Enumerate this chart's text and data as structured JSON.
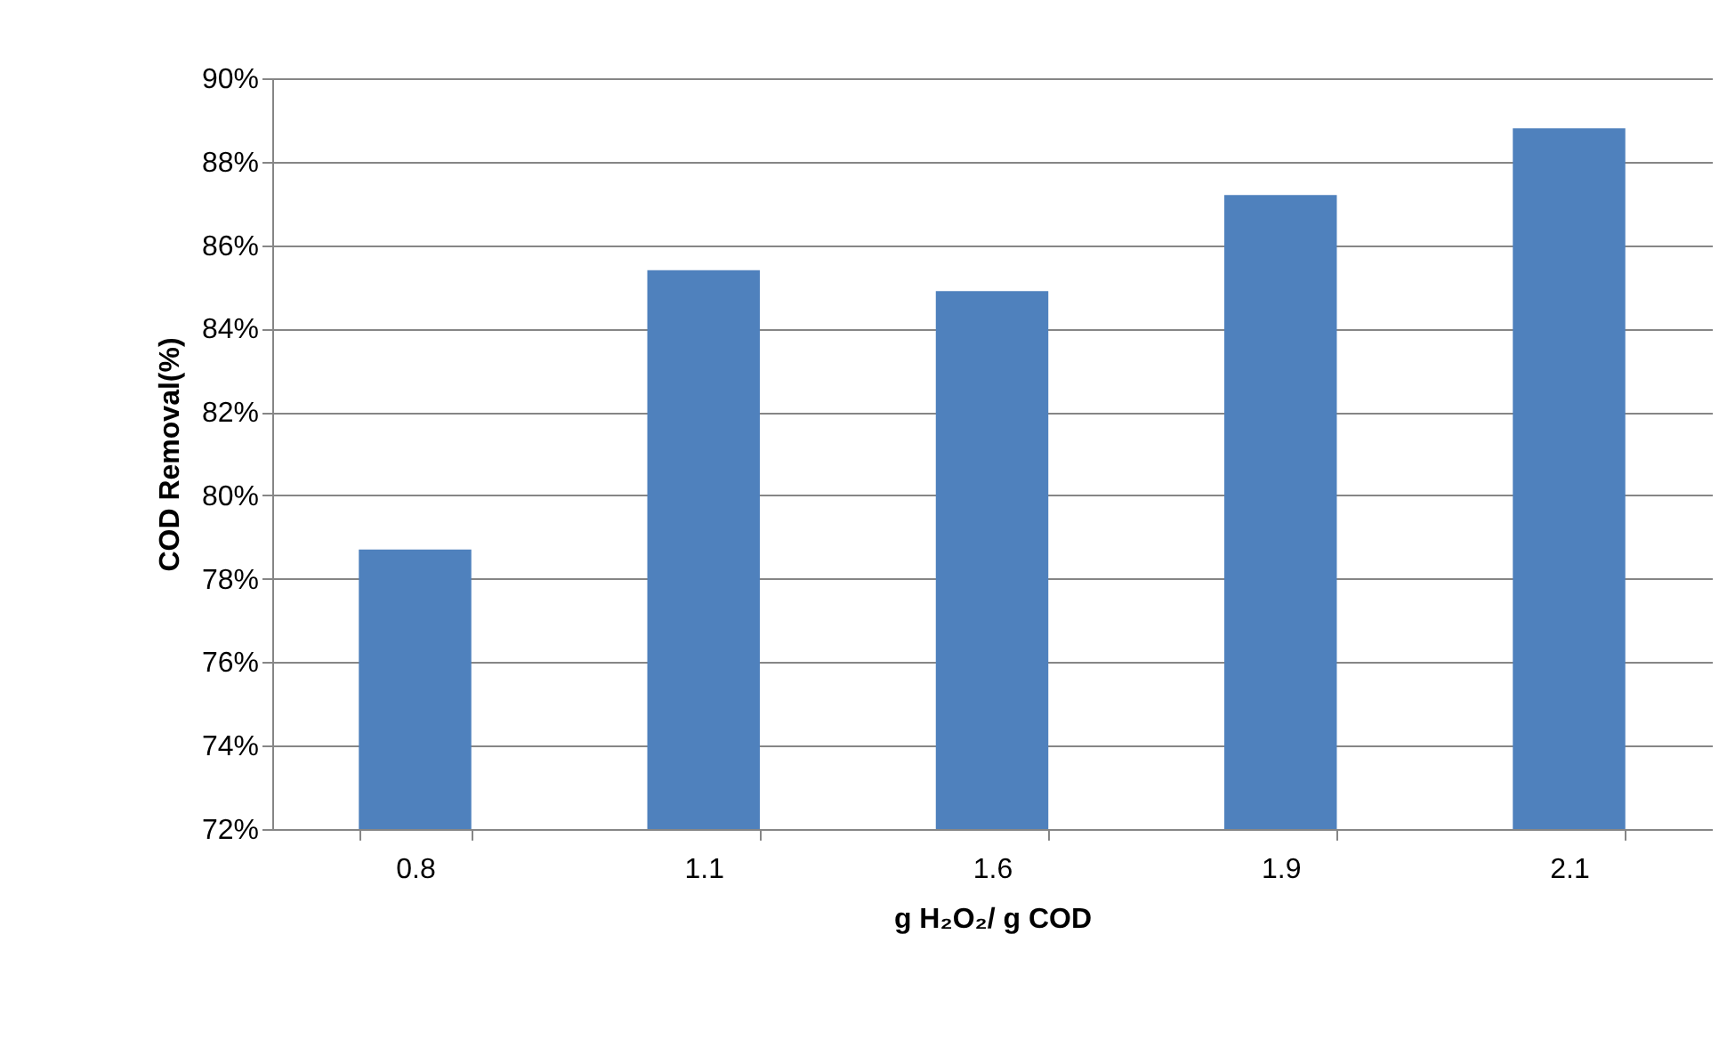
{
  "chart_data": {
    "type": "bar",
    "categories": [
      "0.8",
      "1.1",
      "1.6",
      "1.9",
      "2.1"
    ],
    "values": [
      78.7,
      85.4,
      84.9,
      87.2,
      88.8
    ],
    "color": "#4f81bd",
    "xlabel": "g H₂O₂/ g COD",
    "ylabel": "COD Removal(%)",
    "ylim": [
      72,
      90
    ],
    "yticks": [
      {
        "value": 72,
        "label": "72%"
      },
      {
        "value": 74,
        "label": "74%"
      },
      {
        "value": 76,
        "label": "76%"
      },
      {
        "value": 78,
        "label": "78%"
      },
      {
        "value": 80,
        "label": "80%"
      },
      {
        "value": 82,
        "label": "82%"
      },
      {
        "value": 84,
        "label": "84%"
      },
      {
        "value": 86,
        "label": "86%"
      },
      {
        "value": 88,
        "label": "88%"
      },
      {
        "value": 90,
        "label": "90%"
      }
    ],
    "grid": "y"
  }
}
